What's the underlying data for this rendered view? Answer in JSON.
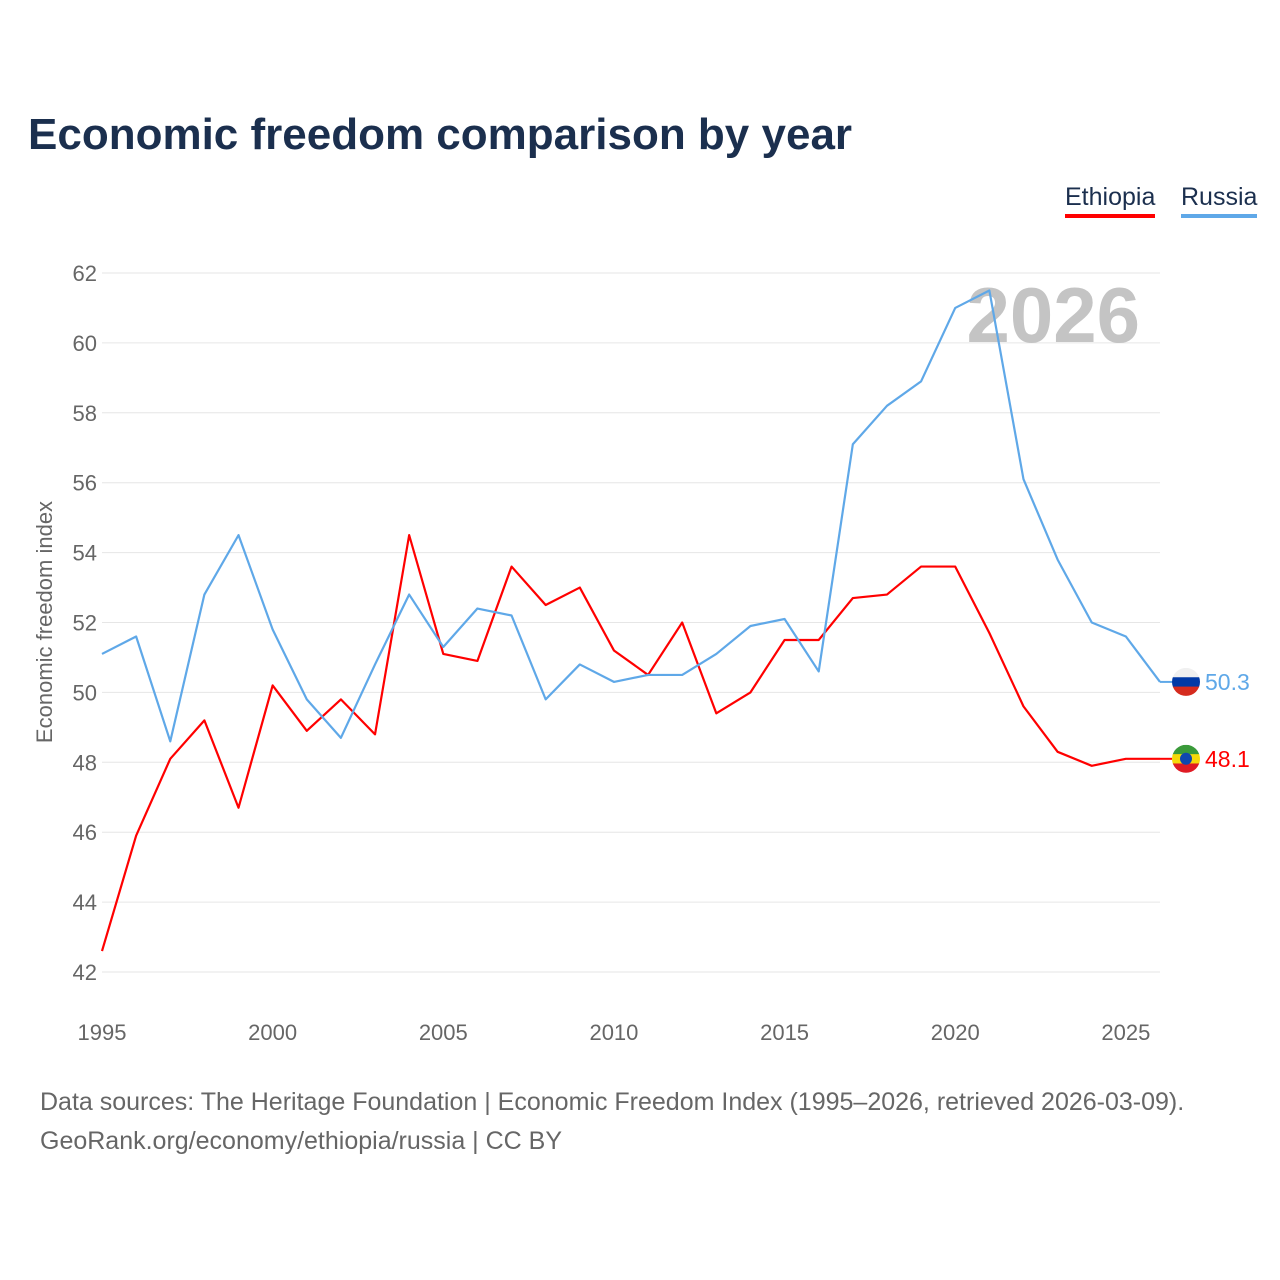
{
  "chart_data": {
    "type": "line",
    "title": "Economic freedom comparison by year",
    "ylabel": "Economic freedom index",
    "xlabel": "",
    "ylim": [
      42,
      62
    ],
    "xlim": [
      1995,
      2026
    ],
    "yticks": [
      "42",
      "44",
      "46",
      "48",
      "50",
      "52",
      "54",
      "56",
      "58",
      "60",
      "62"
    ],
    "xticks": [
      "1995",
      "2000",
      "2005",
      "2010",
      "2015",
      "2020",
      "2025"
    ],
    "watermark_year": "2026",
    "grid": true,
    "legend_position": "top-right",
    "x": [
      1995,
      1996,
      1997,
      1998,
      1999,
      2000,
      2001,
      2002,
      2003,
      2004,
      2005,
      2006,
      2007,
      2008,
      2009,
      2010,
      2011,
      2012,
      2013,
      2014,
      2015,
      2016,
      2017,
      2018,
      2019,
      2020,
      2021,
      2022,
      2023,
      2024,
      2025,
      2026
    ],
    "series": [
      {
        "name": "Ethiopia",
        "color": "#ff0000",
        "end_label": "48.1",
        "values": [
          42.6,
          45.9,
          48.1,
          49.2,
          46.7,
          50.2,
          48.9,
          49.8,
          48.8,
          54.5,
          51.1,
          50.9,
          53.6,
          52.5,
          53.0,
          51.2,
          50.5,
          52.0,
          49.4,
          50.0,
          51.5,
          51.5,
          52.7,
          52.8,
          53.6,
          53.6,
          51.7,
          49.6,
          48.3,
          47.9,
          48.1,
          48.1
        ]
      },
      {
        "name": "Russia",
        "color": "#5fa8e8",
        "end_label": "50.3",
        "values": [
          51.1,
          51.6,
          48.6,
          52.8,
          54.5,
          51.8,
          49.8,
          48.7,
          50.8,
          52.8,
          51.3,
          52.4,
          52.2,
          49.8,
          50.8,
          50.3,
          50.5,
          50.5,
          51.1,
          51.9,
          52.1,
          50.6,
          57.1,
          58.2,
          58.9,
          61.0,
          61.5,
          56.1,
          53.8,
          52.0,
          51.6,
          50.3
        ]
      }
    ]
  },
  "footer": {
    "line1": "Data sources: The Heritage Foundation | Economic Freedom Index (1995–2026, retrieved 2026-03-09).",
    "line2": "GeoRank.org/economy/ethiopia/russia | CC BY"
  }
}
